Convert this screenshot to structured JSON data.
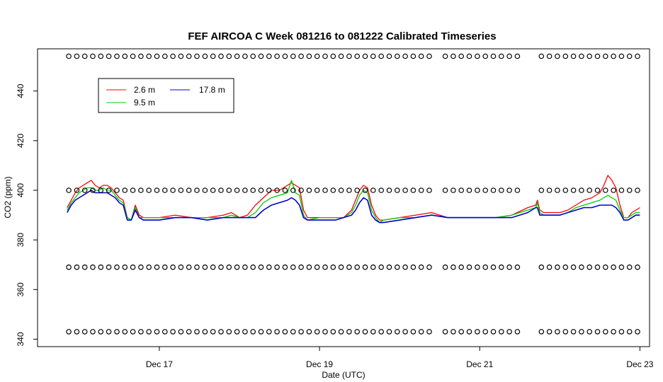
{
  "chart_data": {
    "type": "line",
    "title": "FEF AIRCOA C  Week 081216 to 081222  Calibrated Timeseries",
    "xlabel": "Date (UTC)",
    "ylabel": "CO2 (ppm)",
    "x_unit": "days",
    "xlim": [
      15.48,
      23.12
    ],
    "ylim": [
      337,
      457
    ],
    "x_ticks": [
      {
        "x": 17,
        "label": "Dec 17"
      },
      {
        "x": 19,
        "label": "Dec 19"
      },
      {
        "x": 21,
        "label": "Dec 21"
      },
      {
        "x": 23,
        "label": "Dec 23"
      }
    ],
    "y_ticks": [
      340,
      360,
      380,
      400,
      420,
      440
    ],
    "grid": false,
    "legend_position": "top-left",
    "colors": {
      "2.6 m": "#ff0000",
      "9.5 m": "#00cc00",
      "17.8 m": "#0000cc"
    },
    "series": [
      {
        "name": "2.6 m",
        "color": "#ff0000",
        "x": [
          15.85,
          15.9,
          15.95,
          16.0,
          16.05,
          16.1,
          16.15,
          16.2,
          16.25,
          16.3,
          16.35,
          16.4,
          16.45,
          16.5,
          16.55,
          16.6,
          16.65,
          16.7,
          16.75,
          16.8,
          17.0,
          17.2,
          17.4,
          17.6,
          17.8,
          17.9,
          18.0,
          18.1,
          18.2,
          18.3,
          18.4,
          18.5,
          18.6,
          18.65,
          18.7,
          18.75,
          18.8,
          18.85,
          19.0,
          19.2,
          19.3,
          19.4,
          19.45,
          19.5,
          19.55,
          19.6,
          19.65,
          19.7,
          19.75,
          19.8,
          20.0,
          20.2,
          20.4,
          20.6,
          20.8,
          21.0,
          21.2,
          21.4,
          21.6,
          21.7,
          21.72,
          21.75,
          21.8,
          22.0,
          22.1,
          22.2,
          22.3,
          22.4,
          22.5,
          22.55,
          22.6,
          22.65,
          22.7,
          22.75,
          22.8,
          22.85,
          22.9,
          22.95,
          23.0
        ],
        "y": [
          393,
          396,
          399,
          401,
          402,
          403,
          404,
          402,
          401,
          402,
          402,
          401,
          399,
          397,
          396,
          389,
          388,
          394,
          390,
          389,
          389,
          390,
          389,
          389,
          390,
          391,
          389,
          390,
          394,
          397,
          400,
          400,
          402,
          403,
          402,
          401,
          392,
          389,
          389,
          389,
          389,
          392,
          396,
          400,
          402,
          401,
          394,
          390,
          388,
          388,
          389,
          390,
          391,
          389,
          389,
          389,
          389,
          390,
          393,
          394,
          396,
          392,
          391,
          391,
          392,
          394,
          396,
          397,
          399,
          402,
          406,
          404,
          401,
          394,
          389,
          389,
          391,
          392,
          393
        ]
      },
      {
        "name": "9.5 m",
        "color": "#00cc00",
        "x": [
          15.85,
          15.9,
          15.95,
          16.0,
          16.05,
          16.1,
          16.15,
          16.2,
          16.25,
          16.3,
          16.35,
          16.4,
          16.45,
          16.5,
          16.55,
          16.6,
          16.65,
          16.7,
          16.75,
          16.8,
          17.0,
          17.2,
          17.4,
          17.6,
          17.8,
          17.9,
          18.0,
          18.1,
          18.2,
          18.3,
          18.4,
          18.5,
          18.6,
          18.65,
          18.7,
          18.75,
          18.8,
          18.85,
          19.0,
          19.2,
          19.3,
          19.4,
          19.45,
          19.5,
          19.55,
          19.6,
          19.65,
          19.7,
          19.75,
          19.8,
          20.0,
          20.2,
          20.4,
          20.6,
          20.8,
          21.0,
          21.2,
          21.4,
          21.6,
          21.7,
          21.72,
          21.75,
          21.8,
          22.0,
          22.1,
          22.2,
          22.3,
          22.4,
          22.5,
          22.55,
          22.6,
          22.65,
          22.7,
          22.75,
          22.8,
          22.85,
          22.9,
          22.95,
          23.0
        ],
        "y": [
          392,
          395,
          397,
          399,
          400,
          401,
          401,
          400,
          400,
          401,
          400,
          400,
          398,
          396,
          395,
          389,
          388,
          393,
          389,
          389,
          389,
          389,
          389,
          389,
          389,
          390,
          389,
          389,
          391,
          395,
          397,
          398,
          399,
          404,
          399,
          398,
          390,
          388,
          389,
          389,
          389,
          391,
          394,
          398,
          400,
          399,
          392,
          389,
          387,
          388,
          389,
          389,
          390,
          389,
          389,
          389,
          389,
          390,
          392,
          393,
          395,
          391,
          390,
          390,
          391,
          393,
          394,
          395,
          396,
          397,
          398,
          397,
          396,
          392,
          389,
          389,
          390,
          391,
          391
        ]
      },
      {
        "name": "17.8 m",
        "color": "#0000cc",
        "x": [
          15.85,
          15.9,
          15.95,
          16.0,
          16.05,
          16.1,
          16.15,
          16.2,
          16.25,
          16.3,
          16.35,
          16.4,
          16.45,
          16.5,
          16.55,
          16.6,
          16.65,
          16.7,
          16.75,
          16.8,
          17.0,
          17.2,
          17.4,
          17.6,
          17.8,
          17.9,
          18.0,
          18.1,
          18.2,
          18.3,
          18.4,
          18.5,
          18.6,
          18.65,
          18.7,
          18.75,
          18.8,
          18.85,
          19.0,
          19.2,
          19.3,
          19.4,
          19.45,
          19.5,
          19.55,
          19.6,
          19.65,
          19.7,
          19.75,
          19.8,
          20.0,
          20.2,
          20.4,
          20.6,
          20.8,
          21.0,
          21.2,
          21.4,
          21.6,
          21.7,
          21.72,
          21.75,
          21.8,
          22.0,
          22.1,
          22.2,
          22.3,
          22.4,
          22.5,
          22.55,
          22.6,
          22.65,
          22.7,
          22.75,
          22.8,
          22.85,
          22.9,
          22.95,
          23.0
        ],
        "y": [
          391,
          394,
          396,
          397,
          398,
          399,
          400,
          399,
          399,
          399,
          399,
          398,
          397,
          395,
          394,
          388,
          388,
          392,
          389,
          388,
          388,
          389,
          389,
          388,
          389,
          389,
          389,
          389,
          389,
          392,
          394,
          395,
          396,
          397,
          396,
          394,
          389,
          388,
          388,
          388,
          389,
          390,
          392,
          395,
          397,
          396,
          390,
          388,
          387,
          387,
          388,
          389,
          390,
          389,
          389,
          389,
          389,
          389,
          391,
          393,
          393,
          390,
          390,
          390,
          391,
          392,
          393,
          393,
          394,
          394,
          394,
          394,
          393,
          391,
          388,
          388,
          389,
          390,
          390
        ]
      }
    ],
    "calibration_markers": {
      "symbol": "open circle",
      "x_start": 15.87,
      "x_end": 23.0,
      "spacing_days": 0.1,
      "gaps": [
        [
          20.45,
          20.5
        ],
        [
          21.5,
          21.7
        ]
      ],
      "y_levels": [
        454,
        400,
        369,
        343
      ]
    }
  }
}
